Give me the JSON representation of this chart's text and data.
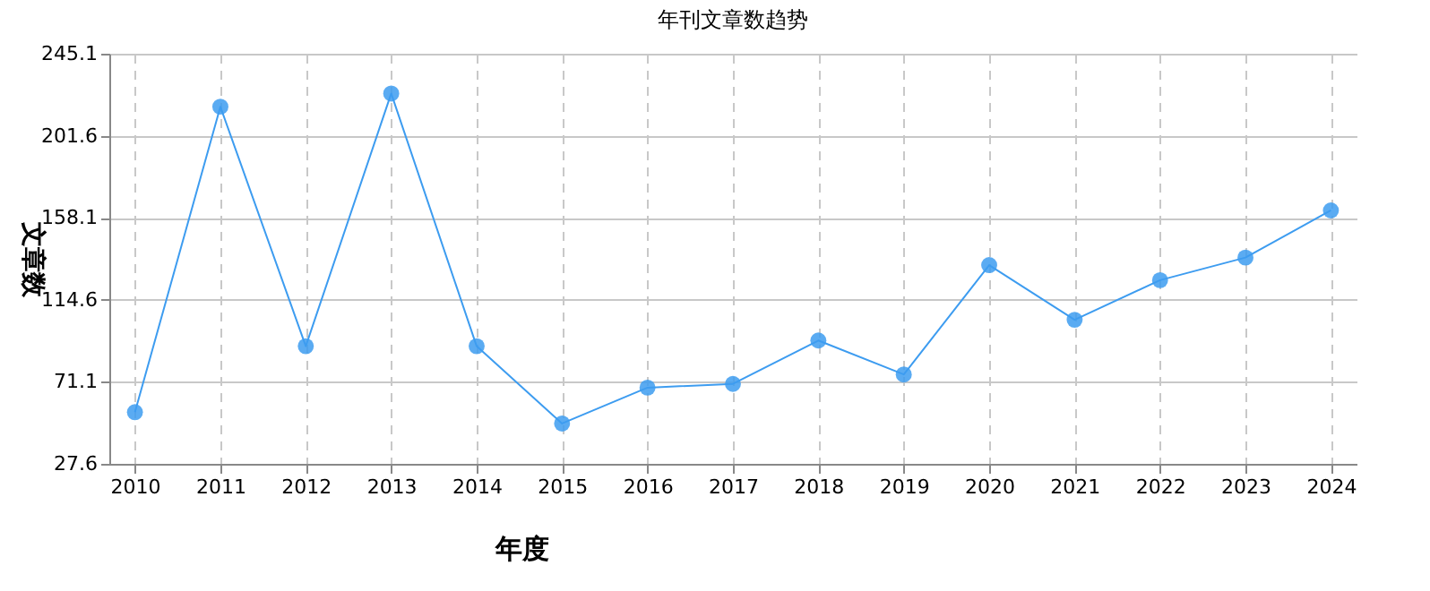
{
  "chart_data": {
    "type": "line",
    "title": "年刊文章数趋势",
    "xlabel": "年度",
    "ylabel": "文章数",
    "categories": [
      "2010",
      "2011",
      "2012",
      "2013",
      "2014",
      "2015",
      "2016",
      "2017",
      "2018",
      "2019",
      "2020",
      "2021",
      "2022",
      "2023",
      "2024"
    ],
    "series": [
      {
        "color": "#3d9cf0",
        "values": [
          55,
          217,
          90,
          224,
          90,
          49,
          68,
          70,
          93,
          75,
          133,
          104,
          125,
          137,
          162
        ]
      }
    ],
    "ylim": [
      27.6,
      245.1
    ],
    "yticks": [
      27.6,
      71.1,
      114.6,
      158.1,
      201.6,
      245.1
    ],
    "grid": true,
    "marker": "circle",
    "line_style": "solid"
  }
}
